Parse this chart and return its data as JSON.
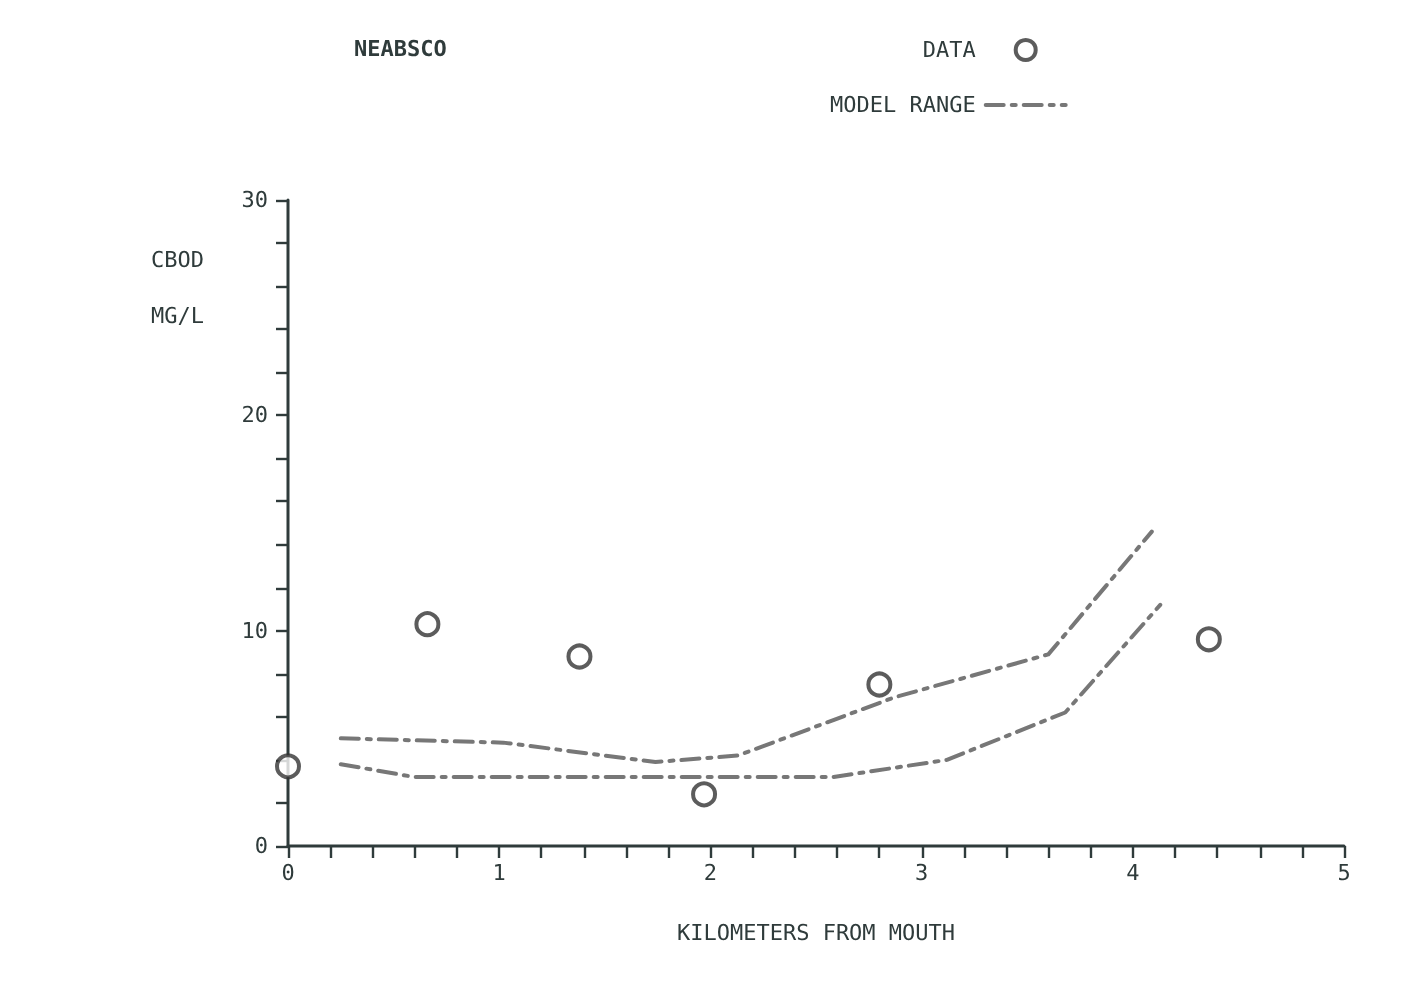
{
  "chart_data": {
    "type": "scatter",
    "title": "NEABSCO",
    "xlabel": "KILOMETERS FROM MOUTH",
    "ylabel": "CBOD\nMG/L",
    "xlim": [
      0,
      5
    ],
    "ylim": [
      0,
      30
    ],
    "xticks": [
      0,
      {
        "value": 0.2,
        "label": null
      },
      {
        "value": 0.4,
        "label": null
      },
      {
        "value": 0.6,
        "label": null
      },
      {
        "value": 0.8,
        "label": null
      },
      1,
      {
        "value": 1.2,
        "label": null
      },
      {
        "value": 1.4,
        "label": null
      },
      {
        "value": 1.6,
        "label": null
      },
      {
        "value": 1.8,
        "label": null
      },
      2,
      {
        "value": 2.2,
        "label": null
      },
      {
        "value": 2.4,
        "label": null
      },
      {
        "value": 2.6,
        "label": null
      },
      {
        "value": 2.8,
        "label": null
      },
      3,
      {
        "value": 3.2,
        "label": null
      },
      {
        "value": 3.4,
        "label": null
      },
      {
        "value": 3.6,
        "label": null
      },
      {
        "value": 3.8,
        "label": null
      },
      4,
      {
        "value": 4.2,
        "label": null
      },
      {
        "value": 4.4,
        "label": null
      },
      {
        "value": 4.6,
        "label": null
      },
      {
        "value": 4.8,
        "label": null
      },
      5
    ],
    "yticks": [
      0,
      {
        "value": 2,
        "label": null
      },
      {
        "value": 4,
        "label": null
      },
      {
        "value": 6,
        "label": null
      },
      {
        "value": 8,
        "label": null
      },
      10,
      {
        "value": 12,
        "label": null
      },
      {
        "value": 14,
        "label": null
      },
      {
        "value": 16,
        "label": null
      },
      {
        "value": 18,
        "label": null
      },
      20,
      {
        "value": 22,
        "label": null
      },
      {
        "value": 24,
        "label": null
      },
      {
        "value": 26,
        "label": null
      },
      {
        "value": 28,
        "label": null
      },
      30
    ],
    "grid": false,
    "legend": "top right",
    "series": [
      {
        "name": "DATA",
        "color": "#333333",
        "marker": "circle",
        "x": [
          0,
          0.66,
          1.38,
          1.97,
          2.8,
          4.36
        ],
        "values": [
          3.7,
          10.3,
          8.8,
          2.4,
          7.5,
          9.6
        ]
      },
      {
        "name": "MODEL RANGE",
        "type": "line",
        "color": "#777777",
        "marker": "none",
        "line_style": "dashdot",
        "x": [
          0.25,
          1.02,
          1.74,
          2.13,
          2.87,
          3.6,
          4.09
        ],
        "values": [
          5.0,
          4.8,
          3.9,
          4.2,
          6.9,
          8.9,
          14.6
        ]
      },
      {
        "type": "line",
        "color": "#777777",
        "marker": "none",
        "line_style": "dashdot",
        "x": [
          0.25,
          0.6,
          1.5,
          2.58,
          3.12,
          3.68,
          4.13
        ],
        "values": [
          3.8,
          3.2,
          3.2,
          3.2,
          4.0,
          6.2,
          11.2
        ]
      }
    ]
  }
}
